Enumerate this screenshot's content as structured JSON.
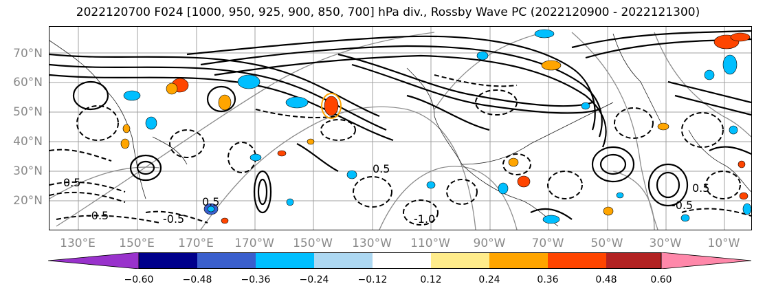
{
  "title": "2022120700 F024 [1000, 950, 925, 900, 850, 700] hPa div., Rossby Wave PC (2022120900 - 2022121300)",
  "lat_labels": [
    "70°N",
    "60°N",
    "50°N",
    "40°N",
    "30°N",
    "20°N"
  ],
  "lon_labels": [
    "130°E",
    "150°E",
    "170°E",
    "170°W",
    "150°W",
    "130°W",
    "110°W",
    "90°W",
    "70°W",
    "50°W",
    "30°W",
    "10°W"
  ],
  "contour_labels": [
    "0.5",
    "-0.5",
    "0.5",
    "-0.5",
    "-1.0",
    "0.5",
    "-0.5",
    "0.5"
  ],
  "colorbar": {
    "colors": [
      "#9932cc",
      "#00008b",
      "#3a5fcd",
      "#00bfff",
      "#add8f2",
      "#ffffff",
      "#ffec8b",
      "#ffa500",
      "#ff4500",
      "#b22222",
      "#ff88aa"
    ],
    "tick_labels": [
      "−0.60",
      "−0.48",
      "−0.36",
      "−0.24",
      "−0.12",
      "0.12",
      "0.24",
      "0.36",
      "0.48",
      "0.60"
    ]
  },
  "grid_color": "#a0a0a0"
}
